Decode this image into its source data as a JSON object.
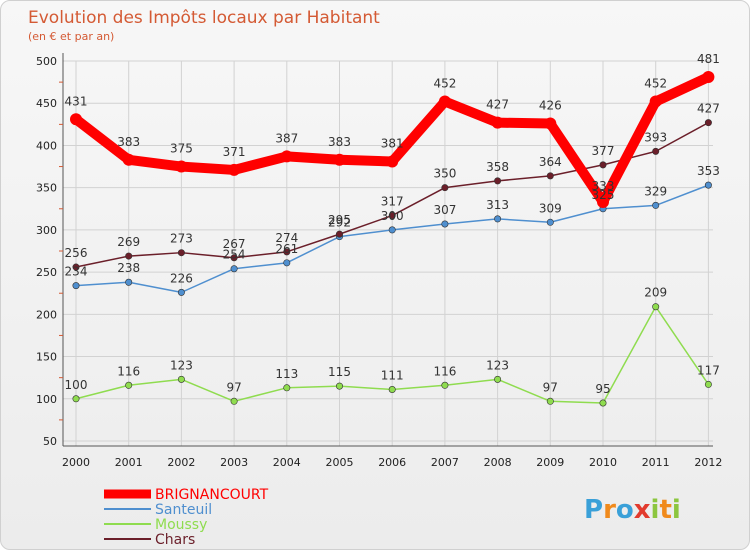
{
  "chart_data": {
    "type": "line",
    "title": "Evolution des Impôts locaux par Habitant",
    "subtitle": "(en € et par an)",
    "xlabel": "",
    "ylabel": "",
    "categories": [
      "2000",
      "2001",
      "2002",
      "2003",
      "2004",
      "2005",
      "2006",
      "2007",
      "2008",
      "2009",
      "2010",
      "2011",
      "2012"
    ],
    "ylim": [
      50,
      500
    ],
    "yticks": [
      "50",
      "100",
      "150",
      "200",
      "250",
      "300",
      "350",
      "400",
      "450",
      "500"
    ],
    "grid": true,
    "series": [
      {
        "name": "BRIGNANCOURT",
        "color": "#ff0000",
        "values": [
          431,
          383,
          375,
          371,
          387,
          383,
          381,
          452,
          427,
          426,
          333,
          452,
          481
        ],
        "labels": [
          "431",
          "383",
          "375",
          "371",
          "387",
          "383",
          "381",
          "452",
          "427",
          "426",
          "333",
          "452",
          "481"
        ]
      },
      {
        "name": "Santeuil",
        "color": "#4f8fcf",
        "values": [
          234,
          238,
          226,
          254,
          261,
          292,
          300,
          307,
          313,
          309,
          325,
          329,
          353
        ],
        "labels": [
          "234",
          "238",
          "226",
          "254",
          "261",
          "292",
          "300",
          "307",
          "313",
          "309",
          "325",
          "329",
          "353"
        ]
      },
      {
        "name": "Moussy",
        "color": "#8fdc4f",
        "values": [
          100,
          116,
          123,
          97,
          113,
          115,
          111,
          116,
          123,
          97,
          95,
          209,
          117
        ],
        "labels": [
          "100",
          "116",
          "123",
          "97",
          "113",
          "115",
          "111",
          "116",
          "123",
          "97",
          "95",
          "209",
          "117"
        ]
      },
      {
        "name": "Chars",
        "color": "#6b1f2a",
        "values": [
          256,
          269,
          273,
          267,
          274,
          295,
          317,
          350,
          358,
          364,
          377,
          393,
          427
        ],
        "labels": [
          "256",
          "269",
          "273",
          "267",
          "274",
          "295",
          "317",
          "350",
          "358",
          "364",
          "377",
          "393",
          "427"
        ]
      }
    ],
    "legend_position": "bottom-left"
  },
  "logo": {
    "text": "Proxiti",
    "letters": [
      "P",
      "r",
      "o",
      "x",
      "i",
      "t",
      "i"
    ],
    "colors": [
      "#3aa0d8",
      "#f08a1c",
      "#3aa0d8",
      "#e23b2e",
      "#8cc63f",
      "#f08a1c",
      "#8cc63f"
    ]
  }
}
